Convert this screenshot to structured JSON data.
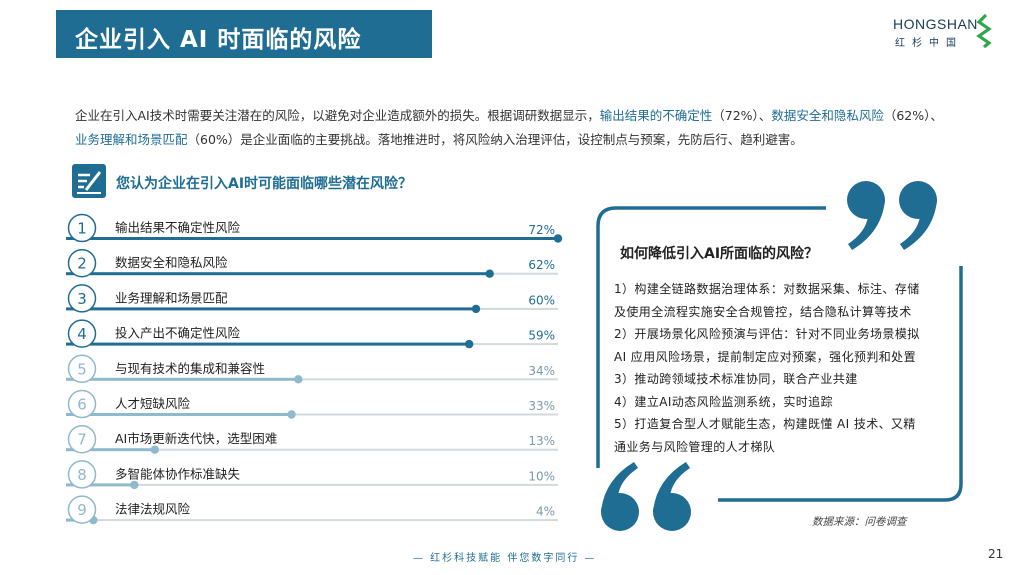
{
  "header": {
    "title": "企业引入 AI 时面临的风险",
    "logo_word": "HONGSHAN",
    "logo_sub": "红杉中国"
  },
  "intro": {
    "part1": "企业在引入AI技术时需要关注潜在的风险，以避免对企业造成额外的损失。根据调研数据显示，",
    "hl1": "输出结果的不确定性",
    "part2": "（72%）、",
    "hl2": "数据安全和隐私风险",
    "part3": "（62%）、",
    "hl3": "业务理解和场景匹配",
    "part4": "（60%）是企业面临的主要挑战。落地推进时，将风险纳入治理评估，设控制点与预案，先防后行、趋利避害。"
  },
  "question": "您认为企业在引入AI时可能面临哪些潜在风险？",
  "chart_data": {
    "type": "bar",
    "orientation": "horizontal",
    "categories": [
      "输出结果不确定性风险",
      "数据安全和隐私风险",
      "业务理解和场景匹配",
      "投入产出不确定性风险",
      "与现有技术的集成和兼容性",
      "人才短缺风险",
      "AI市场更新迭代快，选型困难",
      "多智能体协作标准缺失",
      "法律法规风险"
    ],
    "values": [
      72,
      62,
      60,
      59,
      34,
      33,
      13,
      10,
      4
    ],
    "value_labels": [
      "72%",
      "62%",
      "60%",
      "59%",
      "34%",
      "33%",
      "13%",
      "10%",
      "4%"
    ],
    "rank_labels": [
      "1",
      "2",
      "3",
      "4",
      "5",
      "6",
      "7",
      "8",
      "9"
    ],
    "xlim": [
      0,
      72
    ],
    "colors": {
      "top": "#1f6d93",
      "rest": "#8fb9cc",
      "track": "#d4d9dd"
    }
  },
  "sidebar": {
    "question": "如何降低引入AI所面临的风险？",
    "tips": [
      "1）构建全链路数据治理体系：对数据采集、标注、存储",
      "及使用全流程实施安全合规管控，结合隐私计算等技术",
      "2）开展场景化风险预演与评估：针对不同业务场景模拟",
      "AI 应用风险场景，提前制定应对预案，强化预判和处置",
      "3）推动跨领域技术标准协同，联合产业共建",
      "4）建立AI动态风险监测系统，实时追踪",
      "5）打造复合型人才赋能生态，构建既懂 AI 技术、又精",
      "通业务与风险管理的人才梯队"
    ],
    "source": "数据来源：问卷调查"
  },
  "footer": {
    "slogan": "— 红杉科技赋能   伴您数字同行 —",
    "page": "21"
  }
}
